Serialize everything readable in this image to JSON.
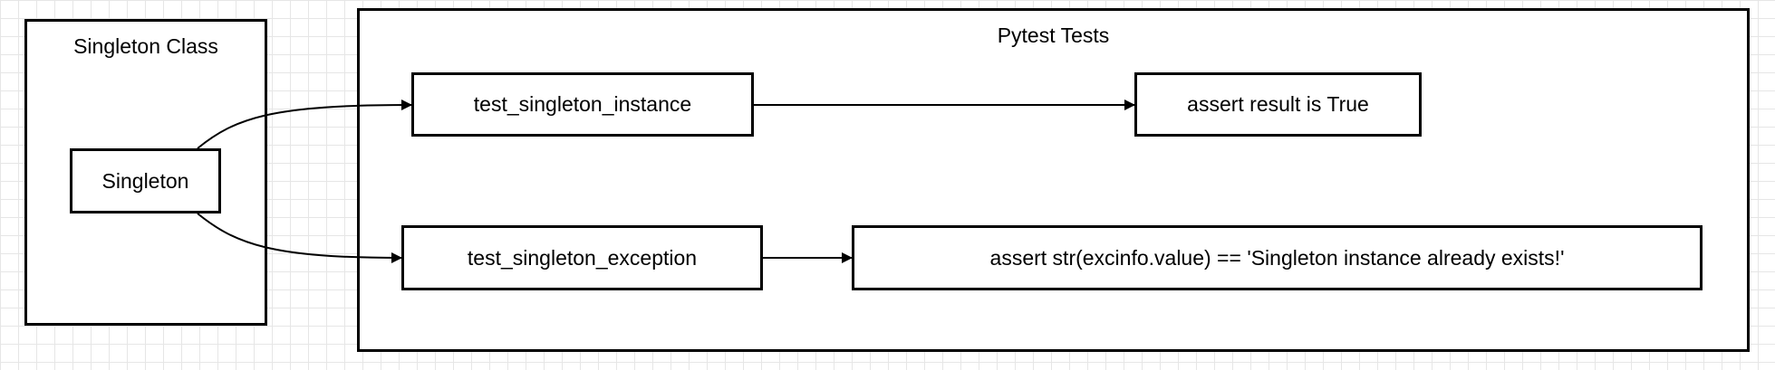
{
  "containers": {
    "singleton_class": "Singleton Class",
    "pytest_tests": "Pytest Tests"
  },
  "nodes": {
    "singleton": "Singleton",
    "test_instance": "test_singleton_instance",
    "assert_true": "assert result is True",
    "test_exception": "test_singleton_exception",
    "assert_exception": "assert str(excinfo.value) == 'Singleton instance already exists!'"
  }
}
